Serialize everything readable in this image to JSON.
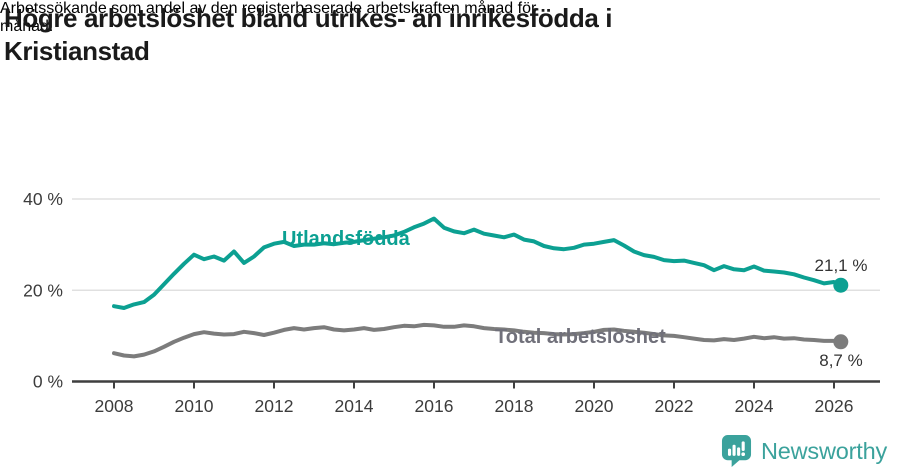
{
  "header": {
    "title": "Högre arbetslöshet bland utrikes- än inrikesfödda i Kristianstad",
    "title_lines": [
      "Högre arbetslöshet bland utrikes- än inrikesfödda i",
      "Kristianstad"
    ],
    "subtitle": "Arbetssökande som andel av den registerbaserade arbetskraften månad för månad.",
    "subtitle_lines": [
      "Arbetssökande som andel av den registerbaserade arbetskraften månad för",
      "månad."
    ]
  },
  "colors": {
    "accent_teal": "#0ca092",
    "series_gray": "#7c7c7c",
    "series_gray_label": "#70707a",
    "axis": "#3f3f3f",
    "tick_text": "#3c3c3c",
    "grid": "#e0e0e0",
    "value_label": "#333333",
    "logo_teal": "#3ba29c"
  },
  "footer": {
    "brand": "Newsworthy",
    "logo_icon": "newsworthy-speech-bubble-barchart-icon"
  },
  "chart_data": {
    "type": "line",
    "title": "Högre arbetslöshet bland utrikes- än inrikesfödda i Kristianstad",
    "xlabel": "",
    "ylabel": "",
    "unit": "%",
    "grid": "horizontal-only",
    "legend": "inline-series-labels",
    "x_axis": {
      "ticks": [
        2008,
        2010,
        2012,
        2014,
        2016,
        2018,
        2020,
        2022,
        2024,
        2026
      ],
      "tick_labels": [
        "2008",
        "2010",
        "2012",
        "2014",
        "2016",
        "2018",
        "2020",
        "2022",
        "2024",
        "2026"
      ],
      "range_years": [
        2006.95,
        2027.15
      ]
    },
    "y_axis": {
      "ticks": [
        0,
        20,
        40
      ],
      "tick_labels": [
        "0 %",
        "20 %",
        "40 %"
      ],
      "range": [
        0,
        43
      ]
    },
    "series": [
      {
        "name": "Utlandsfödda",
        "color": "#0ca092",
        "end_value": 21.1,
        "end_label": "21,1 %",
        "points": [
          [
            2008.0,
            16.5
          ],
          [
            2008.25,
            16.1
          ],
          [
            2008.5,
            16.9
          ],
          [
            2008.75,
            17.4
          ],
          [
            2009.0,
            19.0
          ],
          [
            2009.25,
            21.3
          ],
          [
            2009.5,
            23.6
          ],
          [
            2009.75,
            25.8
          ],
          [
            2010.0,
            27.8
          ],
          [
            2010.25,
            26.8
          ],
          [
            2010.5,
            27.4
          ],
          [
            2010.75,
            26.5
          ],
          [
            2011.0,
            28.5
          ],
          [
            2011.25,
            26.0
          ],
          [
            2011.5,
            27.4
          ],
          [
            2011.75,
            29.4
          ],
          [
            2012.0,
            30.2
          ],
          [
            2012.25,
            30.6
          ],
          [
            2012.5,
            29.7
          ],
          [
            2012.75,
            30.0
          ],
          [
            2013.0,
            30.0
          ],
          [
            2013.25,
            30.3
          ],
          [
            2013.5,
            30.1
          ],
          [
            2013.75,
            30.4
          ],
          [
            2014.0,
            30.6
          ],
          [
            2014.25,
            31.0
          ],
          [
            2014.5,
            31.3
          ],
          [
            2014.75,
            31.6
          ],
          [
            2015.0,
            32.0
          ],
          [
            2015.25,
            32.8
          ],
          [
            2015.5,
            33.8
          ],
          [
            2015.75,
            34.6
          ],
          [
            2016.0,
            35.7
          ],
          [
            2016.25,
            33.7
          ],
          [
            2016.5,
            32.9
          ],
          [
            2016.75,
            32.5
          ],
          [
            2017.0,
            33.3
          ],
          [
            2017.25,
            32.4
          ],
          [
            2017.5,
            32.0
          ],
          [
            2017.75,
            31.6
          ],
          [
            2018.0,
            32.2
          ],
          [
            2018.25,
            31.1
          ],
          [
            2018.5,
            30.7
          ],
          [
            2018.75,
            29.7
          ],
          [
            2019.0,
            29.2
          ],
          [
            2019.25,
            29.0
          ],
          [
            2019.5,
            29.3
          ],
          [
            2019.75,
            30.0
          ],
          [
            2020.0,
            30.2
          ],
          [
            2020.25,
            30.6
          ],
          [
            2020.5,
            31.0
          ],
          [
            2020.75,
            29.8
          ],
          [
            2021.0,
            28.5
          ],
          [
            2021.25,
            27.7
          ],
          [
            2021.5,
            27.3
          ],
          [
            2021.75,
            26.6
          ],
          [
            2022.0,
            26.4
          ],
          [
            2022.25,
            26.5
          ],
          [
            2022.5,
            26.0
          ],
          [
            2022.75,
            25.5
          ],
          [
            2023.0,
            24.4
          ],
          [
            2023.25,
            25.3
          ],
          [
            2023.5,
            24.6
          ],
          [
            2023.75,
            24.4
          ],
          [
            2024.0,
            25.2
          ],
          [
            2024.25,
            24.3
          ],
          [
            2024.5,
            24.1
          ],
          [
            2024.75,
            23.9
          ],
          [
            2025.0,
            23.5
          ],
          [
            2025.25,
            22.8
          ],
          [
            2025.5,
            22.2
          ],
          [
            2025.75,
            21.5
          ],
          [
            2026.0,
            21.8
          ],
          [
            2026.17,
            21.1
          ]
        ]
      },
      {
        "name": "Total arbetslöshet",
        "color": "#7c7c7c",
        "end_value": 8.7,
        "end_label": "8,7 %",
        "points": [
          [
            2008.0,
            6.2
          ],
          [
            2008.25,
            5.7
          ],
          [
            2008.5,
            5.5
          ],
          [
            2008.75,
            5.9
          ],
          [
            2009.0,
            6.6
          ],
          [
            2009.25,
            7.6
          ],
          [
            2009.5,
            8.7
          ],
          [
            2009.75,
            9.6
          ],
          [
            2010.0,
            10.4
          ],
          [
            2010.25,
            10.8
          ],
          [
            2010.5,
            10.5
          ],
          [
            2010.75,
            10.3
          ],
          [
            2011.0,
            10.4
          ],
          [
            2011.25,
            10.9
          ],
          [
            2011.5,
            10.6
          ],
          [
            2011.75,
            10.2
          ],
          [
            2012.0,
            10.7
          ],
          [
            2012.25,
            11.3
          ],
          [
            2012.5,
            11.7
          ],
          [
            2012.75,
            11.4
          ],
          [
            2013.0,
            11.7
          ],
          [
            2013.25,
            11.9
          ],
          [
            2013.5,
            11.4
          ],
          [
            2013.75,
            11.2
          ],
          [
            2014.0,
            11.4
          ],
          [
            2014.25,
            11.7
          ],
          [
            2014.5,
            11.3
          ],
          [
            2014.75,
            11.5
          ],
          [
            2015.0,
            11.9
          ],
          [
            2015.25,
            12.2
          ],
          [
            2015.5,
            12.1
          ],
          [
            2015.75,
            12.4
          ],
          [
            2016.0,
            12.3
          ],
          [
            2016.25,
            12.0
          ],
          [
            2016.5,
            12.0
          ],
          [
            2016.75,
            12.3
          ],
          [
            2017.0,
            12.1
          ],
          [
            2017.25,
            11.7
          ],
          [
            2017.5,
            11.5
          ],
          [
            2017.75,
            11.4
          ],
          [
            2018.0,
            11.2
          ],
          [
            2018.25,
            10.9
          ],
          [
            2018.5,
            10.7
          ],
          [
            2018.75,
            10.6
          ],
          [
            2019.0,
            10.4
          ],
          [
            2019.25,
            10.3
          ],
          [
            2019.5,
            10.4
          ],
          [
            2019.75,
            10.6
          ],
          [
            2020.0,
            10.9
          ],
          [
            2020.25,
            11.3
          ],
          [
            2020.5,
            11.4
          ],
          [
            2020.75,
            11.1
          ],
          [
            2021.0,
            10.9
          ],
          [
            2021.25,
            10.7
          ],
          [
            2021.5,
            10.4
          ],
          [
            2021.75,
            10.1
          ],
          [
            2022.0,
            10.0
          ],
          [
            2022.25,
            9.7
          ],
          [
            2022.5,
            9.4
          ],
          [
            2022.75,
            9.1
          ],
          [
            2023.0,
            9.0
          ],
          [
            2023.25,
            9.3
          ],
          [
            2023.5,
            9.1
          ],
          [
            2023.75,
            9.4
          ],
          [
            2024.0,
            9.8
          ],
          [
            2024.25,
            9.5
          ],
          [
            2024.5,
            9.7
          ],
          [
            2024.75,
            9.4
          ],
          [
            2025.0,
            9.5
          ],
          [
            2025.25,
            9.2
          ],
          [
            2025.5,
            9.1
          ],
          [
            2025.75,
            8.9
          ],
          [
            2026.0,
            8.9
          ],
          [
            2026.17,
            8.7
          ]
        ]
      }
    ]
  }
}
